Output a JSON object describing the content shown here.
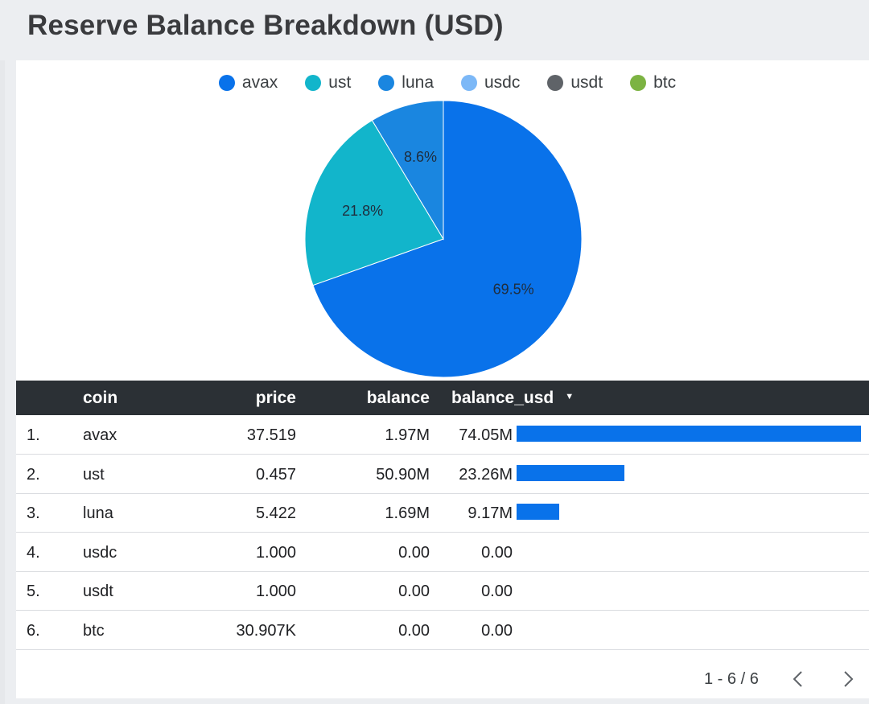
{
  "header": {
    "title": "Reserve Balance Breakdown (USD)"
  },
  "legend": [
    {
      "label": "avax",
      "color": "#0972ea"
    },
    {
      "label": "ust",
      "color": "#12b5cb"
    },
    {
      "label": "luna",
      "color": "#1a86e0"
    },
    {
      "label": "usdc",
      "color": "#7cb8f7"
    },
    {
      "label": "usdt",
      "color": "#5f6368"
    },
    {
      "label": "btc",
      "color": "#7cb342"
    }
  ],
  "chart_data": {
    "type": "pie",
    "title": "Reserve Balance Breakdown (USD)",
    "slices": [
      {
        "label": "avax",
        "value": 69.5,
        "display": "69.5%",
        "color": "#0972ea"
      },
      {
        "label": "ust",
        "value": 21.8,
        "display": "21.8%",
        "color": "#12b5cb"
      },
      {
        "label": "luna",
        "value": 8.6,
        "display": "8.6%",
        "color": "#1a86e0"
      },
      {
        "label": "usdc",
        "value": 0,
        "display": "",
        "color": "#7cb8f7"
      },
      {
        "label": "usdt",
        "value": 0,
        "display": "",
        "color": "#5f6368"
      },
      {
        "label": "btc",
        "value": 0,
        "display": "",
        "color": "#7cb342"
      }
    ],
    "legend_position": "top"
  },
  "table": {
    "columns": {
      "coin": "coin",
      "price": "price",
      "balance": "balance",
      "balance_usd": "balance_usd"
    },
    "sort_indicator": "▼",
    "rows": [
      {
        "index": "1.",
        "coin": "avax",
        "price": "37.519",
        "balance": "1.97M",
        "balance_usd": "74.05M",
        "bar": 74.05
      },
      {
        "index": "2.",
        "coin": "ust",
        "price": "0.457",
        "balance": "50.90M",
        "balance_usd": "23.26M",
        "bar": 23.26
      },
      {
        "index": "3.",
        "coin": "luna",
        "price": "5.422",
        "balance": "1.69M",
        "balance_usd": "9.17M",
        "bar": 9.17
      },
      {
        "index": "4.",
        "coin": "usdc",
        "price": "1.000",
        "balance": "0.00",
        "balance_usd": "0.00",
        "bar": 0
      },
      {
        "index": "5.",
        "coin": "usdt",
        "price": "1.000",
        "balance": "0.00",
        "balance_usd": "0.00",
        "bar": 0
      },
      {
        "index": "6.",
        "coin": "btc",
        "price": "30.907K",
        "balance": "0.00",
        "balance_usd": "0.00",
        "bar": 0
      }
    ],
    "bar_max": 74.05,
    "bar_color": "#0972ea"
  },
  "pagination": {
    "text": "1 - 6 / 6",
    "prev_icon": "chevron-left-icon",
    "next_icon": "chevron-right-icon"
  }
}
